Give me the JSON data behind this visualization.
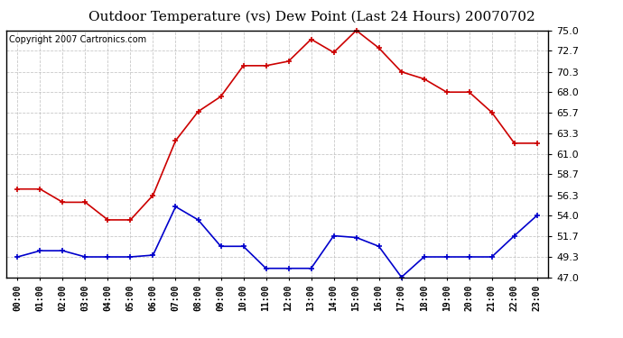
{
  "title": "Outdoor Temperature (vs) Dew Point (Last 24 Hours) 20070702",
  "copyright": "Copyright 2007 Cartronics.com",
  "hours": [
    "00:00",
    "01:00",
    "02:00",
    "03:00",
    "04:00",
    "05:00",
    "06:00",
    "07:00",
    "08:00",
    "09:00",
    "10:00",
    "11:00",
    "12:00",
    "13:00",
    "14:00",
    "15:00",
    "16:00",
    "17:00",
    "18:00",
    "19:00",
    "20:00",
    "21:00",
    "22:00",
    "23:00"
  ],
  "temp": [
    57.0,
    57.0,
    55.5,
    55.5,
    53.5,
    53.5,
    56.3,
    62.5,
    65.8,
    67.5,
    71.0,
    71.0,
    71.5,
    74.0,
    72.5,
    75.0,
    73.0,
    70.3,
    69.5,
    68.0,
    68.0,
    65.7,
    62.2,
    62.2
  ],
  "dew": [
    49.3,
    50.0,
    50.0,
    49.3,
    49.3,
    49.3,
    49.5,
    55.0,
    53.5,
    50.5,
    50.5,
    48.0,
    48.0,
    48.0,
    51.7,
    51.5,
    50.5,
    47.0,
    49.3,
    49.3,
    49.3,
    49.3,
    51.7,
    54.0
  ],
  "temp_color": "#cc0000",
  "dew_color": "#0000cc",
  "ylim_min": 47.0,
  "ylim_max": 75.0,
  "yticks": [
    47.0,
    49.3,
    51.7,
    54.0,
    56.3,
    58.7,
    61.0,
    63.3,
    65.7,
    68.0,
    70.3,
    72.7,
    75.0
  ],
  "bg_color": "#ffffff",
  "grid_color": "#bbbbbb",
  "title_fontsize": 11,
  "copyright_fontsize": 7,
  "marker": "+",
  "marker_size": 5,
  "linewidth": 1.2
}
